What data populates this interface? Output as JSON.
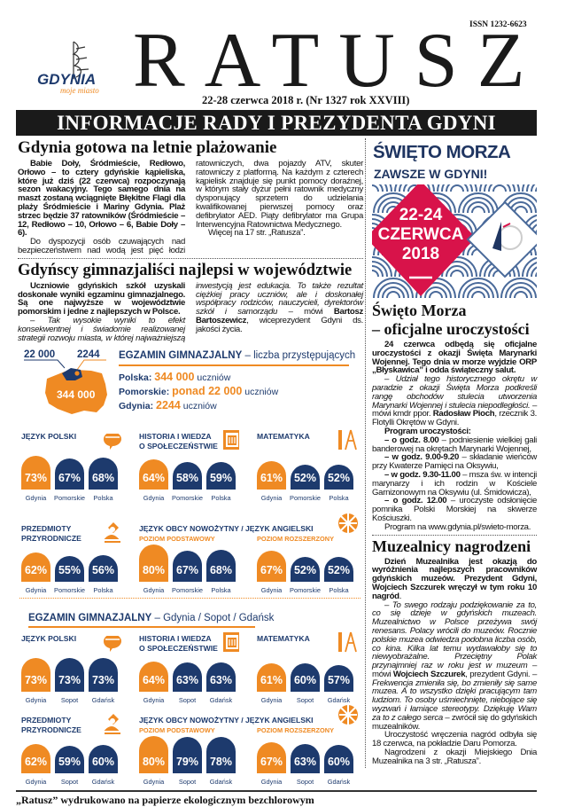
{
  "masthead": {
    "issn": "ISSN 1232-6623",
    "title": "RATUSZ",
    "logo_text": "GDYNIA",
    "logo_tagline": "moje miasto",
    "issue_line": "22-28 czerwca 2018 r. (Nr 1327 rok XXVIII)",
    "banner": "INFORMACJE RADY I PREZYDENTA GDYNI"
  },
  "article_beach": {
    "headline": "Gdynia gotowa na letnie plażowanie",
    "paragraphs": [
      [
        {
          "t": "Babie Doły, Śródmieście, Redłowo, Orłowo – to cztery gdyńskie kąpieliska, które już dziś (22 czerwca) rozpoczynają sezon wakacyjny. Tego samego dnia na maszt zostaną wciągnięte Błękitne Flagi dla plaży Śródmieście i Mariny Gdynia. Plaż strzec będzie 37 ratowników (Śródmieście – 12, Redłowo – 10, Orłowo – 6, Babie Doły – 6).",
          "s": "b"
        }
      ],
      [
        {
          "t": "Do dyspozycji osób czuwających nad bezpieczeństwem nad wodą jest pięć łodzi ratowniczych, dwa pojazdy ATV, skuter ratowniczy z platformą. Na każdym z czterech kąpielisk znajduje się punkt pomocy doraźnej, w którym stały dyżur pełni ratownik medyczny dysponujący sprzetem do udzielania kwalifikowanej pierwszej pomocy oraz defibrylator AED. Piąty defibrylator ma Grupa Interwencyjna Ratownictwa Medycznego.",
          "s": ""
        }
      ],
      [
        {
          "t": "Więcej na 17 str. „Ratusza”.",
          "s": ""
        }
      ]
    ]
  },
  "article_exam": {
    "headline": "Gdyńscy gimnazjaliści najlepsi w województwie",
    "paragraphs": [
      [
        {
          "t": "Uczniowie gdyńskich szkół uzyskali doskonałe wyniki egzaminu gimnazjalnego. Są one najwyższe w województwie pomorskim i jedne z najlepszych w Polsce.",
          "s": "b"
        }
      ],
      [
        {
          "t": "– Tak wysokie wyniki to efekt konsekwentnej i świadomie realizowanej strategii rozwoju miasta, w której najważniejszą inwestycją jest edukacja. To także rezultat ciężkiej pracy uczniów, ale i doskonałej współpracy rodziców, nauczycieli, dyrektorów szkół i samorządu",
          "s": "i"
        },
        {
          "t": " – mówi ",
          "s": ""
        },
        {
          "t": "Bartosz Bartoszewicz",
          "s": "b"
        },
        {
          "t": ", wiceprezydent Gdyni ds. jakości życia.",
          "s": ""
        }
      ]
    ]
  },
  "infographic": {
    "colors": {
      "navy": "#1d3a6d",
      "orange": "#ef8a23"
    },
    "summary": {
      "map_pomorskie": "22 000",
      "map_gdynia": "2244",
      "map_polska": "344 000",
      "title_main": "EGZAMIN GIMNAZJALNY",
      "title_sub": " – liczba przystępujących",
      "lines": [
        {
          "label": "Polska: ",
          "value": "344 000",
          "unit": " uczniów"
        },
        {
          "label": "Pomorskie: ",
          "value": "ponad 22 000",
          "unit": " uczniów"
        },
        {
          "label": "Gdynia: ",
          "value": "2244",
          "unit": " uczniów"
        }
      ]
    },
    "sections": [
      {
        "heading_main": "",
        "heading_sub": "",
        "labels": [
          "Gdynia",
          "Pomorskie",
          "Polska"
        ],
        "language_title": "JĘZYK OBCY NOWOŻYTNY / JĘZYK ANGIELSKI",
        "subjects": [
          {
            "title": "JĘZYK POLSKI",
            "level": "",
            "icon": "speech-bubble",
            "values": [
              73,
              67,
              68
            ]
          },
          {
            "title": "HISTORIA I WIEDZA\nO SPOŁECZEŃSTWIE",
            "level": "",
            "icon": "book-column",
            "values": [
              64,
              58,
              59
            ]
          },
          {
            "title": "MATEMATYKA",
            "level": "",
            "icon": "ruler-compass",
            "values": [
              61,
              52,
              52
            ]
          },
          {
            "title": "PRZEDMIOTY\nPRZYRODNICZE",
            "level": "",
            "icon": "microscope",
            "values": [
              62,
              55,
              56
            ]
          },
          {
            "title": "",
            "level": "POZIOM PODSTAWOWY",
            "icon": "",
            "values": [
              80,
              67,
              68
            ]
          },
          {
            "title": "",
            "level": "POZIOM ROZSZERZONY",
            "icon": "uk-flag",
            "values": [
              67,
              52,
              52
            ]
          }
        ]
      },
      {
        "heading_main": "EGZAMIN GIMNAZJALNY",
        "heading_sub": " – Gdynia / Sopot / Gdańsk",
        "labels": [
          "Gdynia",
          "Sopot",
          "Gdańsk"
        ],
        "language_title": "JĘZYK OBCY NOWOŻYTNY / JĘZYK ANGIELSKI",
        "subjects": [
          {
            "title": "JĘZYK POLSKI",
            "level": "",
            "icon": "speech-bubble",
            "values": [
              73,
              73,
              73
            ]
          },
          {
            "title": "HISTORIA I WIEDZA\nO SPOŁECZEŃSTWIE",
            "level": "",
            "icon": "book-column",
            "values": [
              64,
              63,
              63
            ]
          },
          {
            "title": "MATEMATYKA",
            "level": "",
            "icon": "ruler-compass",
            "values": [
              61,
              60,
              57
            ]
          },
          {
            "title": "PRZEDMIOTY\nPRZYRODNICZE",
            "level": "",
            "icon": "microscope",
            "values": [
              62,
              59,
              60
            ]
          },
          {
            "title": "",
            "level": "POZIOM PODSTAWOWY",
            "icon": "",
            "values": [
              80,
              79,
              78
            ]
          },
          {
            "title": "",
            "level": "POZIOM ROZSZERZONY",
            "icon": "uk-flag",
            "values": [
              67,
              63,
              60
            ]
          }
        ]
      }
    ]
  },
  "poster": {
    "title": "ŚWIĘTO MORZA",
    "subtitle": "ZAWSZE W GDYNI!",
    "dates": "22-24",
    "month": "CZERWCA",
    "year": "2018",
    "logo_text": "ŚWIĘTO MORZA",
    "colors": {
      "navy": "#1f3561",
      "red": "#d8134a",
      "waves": "#4a6a9a"
    }
  },
  "article_sea": {
    "headline_1": "Święto Morza",
    "headline_2": "– oficjalne uroczystości",
    "paragraphs": [
      [
        {
          "t": "24 czerwca odbędą się oficjalne uroczystości z okazji Święta Marynarki Wojennej. Tego dnia w morze wyjdzie ORP „Błyskawica” i odda świąteczny salut.",
          "s": "b"
        }
      ],
      [
        {
          "t": "– Udział tego historycznego okrętu w paradzie z okazji Święta Morza podkreśli rangę obchodów stulecia utworzenia Marynarki Wojennej i stulecia niepodległości.",
          "s": "i"
        },
        {
          "t": " – mówi kmdr ppor. ",
          "s": ""
        },
        {
          "t": "Radosław Pioch",
          "s": "b"
        },
        {
          "t": ", rzecznik 3. Flotylli Okrętów w Gdyni.",
          "s": ""
        }
      ],
      [
        {
          "t": "Program uroczystości:",
          "s": "b"
        }
      ],
      [
        {
          "t": "– o godz. 8.00",
          "s": "b"
        },
        {
          "t": " – podniesienie wielkiej gali banderowej na okrętach Marynarki Wojennej,",
          "s": ""
        }
      ],
      [
        {
          "t": "– w godz. 9.00-9.20",
          "s": "b"
        },
        {
          "t": " – składanie wieńców przy Kwaterze Pamięci na Oksywiu,",
          "s": ""
        }
      ],
      [
        {
          "t": "– w godz. 9.30-11.00",
          "s": "b"
        },
        {
          "t": " – msza św. w intencji marynarzy i ich rodzin w Kościele Garnizonowym na Oksywiu (ul. Śmidowicza),",
          "s": ""
        }
      ],
      [
        {
          "t": "– o godz. 12.00",
          "s": "b"
        },
        {
          "t": " – uroczyste odsłonięcie pomnika Polski Morskiej na skwerze Kościuszki.",
          "s": ""
        }
      ],
      [
        {
          "t": "Program na www.gdynia.pl/swieto-morza.",
          "s": ""
        }
      ]
    ]
  },
  "article_museum": {
    "headline": "Muzealnicy nagrodzeni",
    "paragraphs": [
      [
        {
          "t": "Dzień Muzealnika jest okazją do wyróżnienia najlepszych pracowników gdyńskich muzeów. Prezydent Gdyni, Wojciech Szczurek wręczył w tym roku 10 nagród",
          "s": "b"
        },
        {
          "t": ".",
          "s": ""
        }
      ],
      [
        {
          "t": "– To swego rodzaju podziękowanie za to, co się dzieje w gdyńskich muzeach. Muzealnictwo w Polsce przeżywa swój renesans. Polacy wrócili do muzeów. Rocznie polskie muzea odwiedza podobna liczba osób, co kina. Kilka lat temu wydawałoby się to niewyobrażalne. Przeciętny Polak przynajmniej raz w roku jest w muzeum",
          "s": "i"
        },
        {
          "t": " – mówi ",
          "s": ""
        },
        {
          "t": "Wojciech Szczurek",
          "s": "b"
        },
        {
          "t": ", prezydent Gdyni. ",
          "s": ""
        },
        {
          "t": "– Frekwencja zmieniła się, bo zmieniły się same muzea. A to wszystko dzięki pracującym tam ludziom. To osoby uśmiechnięte, niebojące się wyzwań i łamiące stereotypy. Dziękuję Wam za to z całego serca",
          "s": "i"
        },
        {
          "t": " – zwrócił się do gdyńskich muzealników.",
          "s": ""
        }
      ],
      [
        {
          "t": "Uroczystość wręczenia nagród odbyła się 18 czerwca, na pokładzie Daru Pomorza.",
          "s": ""
        }
      ],
      [
        {
          "t": "Nagrodzeni z okazji Miejskiego Dnia Muzealnika na 3 str. „Ratusza”.",
          "s": ""
        }
      ]
    ]
  },
  "footer": "„Ratusz” wydrukowano na papierze ekologicznym bezchlorowym"
}
